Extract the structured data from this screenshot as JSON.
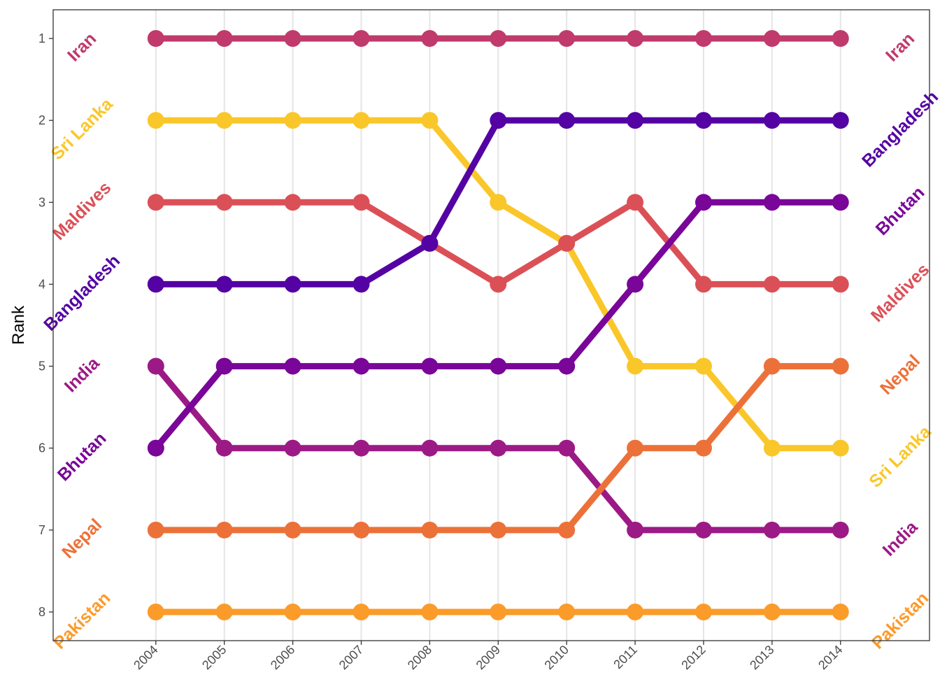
{
  "chart_data": {
    "type": "line",
    "title": "",
    "xlabel": "",
    "ylabel": "Rank",
    "x": [
      2004,
      2005,
      2006,
      2007,
      2008,
      2009,
      2010,
      2011,
      2012,
      2013,
      2014
    ],
    "x_tick_labels": [
      "2004",
      "2005",
      "2006",
      "2007",
      "2008",
      "2009",
      "2010",
      "2011",
      "2012",
      "2013",
      "2014"
    ],
    "y_ticks": [
      1,
      2,
      3,
      4,
      5,
      6,
      7,
      8
    ],
    "y_tick_labels": [
      "1",
      "2",
      "3",
      "4",
      "5",
      "6",
      "7",
      "8"
    ],
    "ylim": [
      8.35,
      0.65
    ],
    "y_reversed": true,
    "xlim": [
      2002.5,
      2015.3
    ],
    "grid": "vertical-major",
    "legend": "none",
    "series": [
      {
        "name": "Iran",
        "color": "#c03a6b",
        "values": [
          1,
          1,
          1,
          1,
          1,
          1,
          1,
          1,
          1,
          1,
          1
        ]
      },
      {
        "name": "Sri Lanka",
        "color": "#fac72a",
        "values": [
          2,
          2,
          2,
          2,
          2,
          3,
          3.5,
          5,
          5,
          6,
          6
        ]
      },
      {
        "name": "Maldives",
        "color": "#db5057",
        "values": [
          3,
          3,
          3,
          3,
          3.5,
          4,
          3.5,
          3,
          4,
          4,
          4
        ]
      },
      {
        "name": "Bangladesh",
        "color": "#5402a3",
        "values": [
          4,
          4,
          4,
          4,
          3.5,
          2,
          2,
          2,
          2,
          2,
          2
        ]
      },
      {
        "name": "India",
        "color": "#9c1a86",
        "values": [
          5,
          6,
          6,
          6,
          6,
          6,
          6,
          7,
          7,
          7,
          7
        ]
      },
      {
        "name": "Bhutan",
        "color": "#7a0599",
        "values": [
          6,
          5,
          5,
          5,
          5,
          5,
          5,
          4,
          3,
          3,
          3
        ]
      },
      {
        "name": "Nepal",
        "color": "#ec7139",
        "values": [
          7,
          7,
          7,
          7,
          7,
          7,
          7,
          6,
          6,
          5,
          5
        ]
      },
      {
        "name": "Pakistan",
        "color": "#fb9b29",
        "values": [
          8,
          8,
          8,
          8,
          8,
          8,
          8,
          8,
          8,
          8,
          8
        ]
      }
    ]
  }
}
